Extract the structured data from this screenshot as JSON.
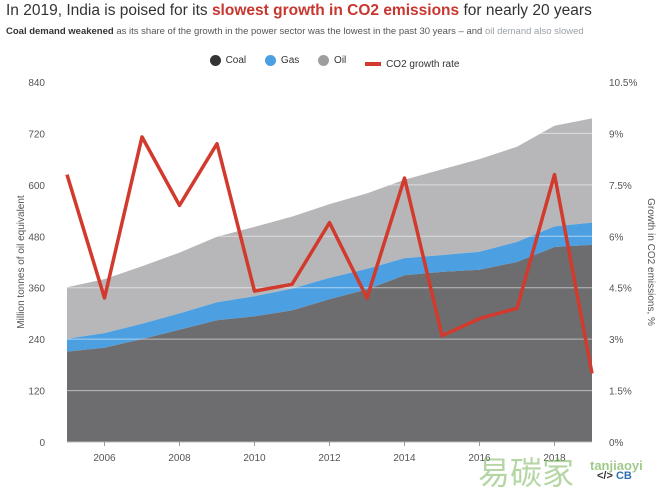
{
  "header": {
    "title_pre": "In 2019, India is poised for its ",
    "title_highlight": "slowest growth in CO2 emissions",
    "title_post": " for nearly 20 years",
    "sub_bold": "Coal demand weakened",
    "sub_mid": " as its share of the growth in the power sector was the lowest in the past 30 years – and ",
    "sub_highlight": "oil demand also slowed"
  },
  "legend": {
    "coal": "Coal",
    "gas": "Gas",
    "oil": "Oil",
    "co2": "CO2 growth rate"
  },
  "watermark": {
    "cb": "CB",
    "code": "</>",
    "site_cn": "易碳家",
    "site_en": "tanjiaoyi"
  },
  "colors": {
    "coal": "#6d6d70",
    "gas": "#4c9fe0",
    "oil": "#b7b7b9",
    "co2": "#d13a2c"
  },
  "chart_data": {
    "type": "area",
    "x": [
      2005,
      2006,
      2007,
      2008,
      2009,
      2010,
      2011,
      2012,
      2013,
      2014,
      2015,
      2016,
      2017,
      2018,
      2019
    ],
    "xticks": [
      "2006",
      "2008",
      "2010",
      "2012",
      "2014",
      "2016",
      "2018"
    ],
    "ylabel": "Million tonnes of oil equivalent",
    "y2label": "Growth in CO2 emissions, %",
    "ylim": [
      0,
      840
    ],
    "yticks": [
      "0",
      "120",
      "240",
      "360",
      "480",
      "600",
      "720",
      "840"
    ],
    "y2lim": [
      0,
      10.5
    ],
    "y2ticks": [
      "0%",
      "1.5%",
      "3%",
      "4.5%",
      "6%",
      "7.5%",
      "9%",
      "10.5%"
    ],
    "series": [
      {
        "name": "Coal",
        "values": [
          211,
          220,
          240,
          262,
          284,
          293,
          307,
          333,
          356,
          389,
          397,
          402,
          420,
          455,
          460
        ]
      },
      {
        "name": "Gas",
        "values": [
          30,
          34,
          36,
          38,
          42,
          47,
          51,
          50,
          48,
          40,
          39,
          42,
          47,
          48,
          52
        ]
      },
      {
        "name": "Oil",
        "values": [
          120,
          126,
          134,
          142,
          153,
          162,
          168,
          172,
          176,
          183,
          200,
          216,
          222,
          235,
          243
        ]
      },
      {
        "name": "CO2 growth rate",
        "axis": "right",
        "values": [
          7.8,
          4.2,
          8.9,
          6.9,
          8.7,
          4.4,
          4.6,
          6.4,
          4.2,
          7.7,
          3.1,
          3.6,
          3.9,
          7.8,
          2.0
        ]
      }
    ],
    "grid": true,
    "legend_position": "top-center"
  }
}
